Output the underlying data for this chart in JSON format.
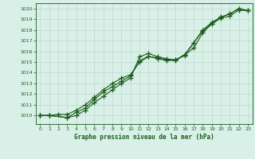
{
  "title": "Graphe pression niveau de la mer (hPa)",
  "bg_color": "#d8f0e8",
  "line_color": "#1a5c1a",
  "grid_color": "#c0d8cc",
  "xlim": [
    -0.5,
    23.5
  ],
  "ylim": [
    1009.2,
    1020.5
  ],
  "yticks": [
    1010,
    1011,
    1012,
    1013,
    1014,
    1015,
    1016,
    1017,
    1018,
    1019,
    1020
  ],
  "xticks": [
    0,
    1,
    2,
    3,
    4,
    5,
    6,
    7,
    8,
    9,
    10,
    11,
    12,
    13,
    14,
    15,
    16,
    17,
    18,
    19,
    20,
    21,
    22,
    23
  ],
  "series1": {
    "x": [
      0,
      1,
      3,
      4,
      5,
      6,
      7,
      8,
      9,
      10,
      11,
      12,
      13,
      14,
      15,
      16,
      17,
      18,
      19,
      20,
      21,
      22,
      23
    ],
    "y": [
      1010.0,
      1010.0,
      1009.8,
      1010.0,
      1010.5,
      1011.2,
      1011.8,
      1012.4,
      1013.0,
      1013.5,
      1015.5,
      1015.8,
      1015.5,
      1015.3,
      1015.2,
      1015.6,
      1016.8,
      1017.9,
      1018.6,
      1019.2,
      1019.5,
      1020.0,
      1019.8
    ]
  },
  "series2": {
    "x": [
      0,
      1,
      3,
      4,
      5,
      6,
      7,
      8,
      9,
      10,
      11,
      12,
      13,
      14,
      15,
      16,
      17,
      18,
      19,
      20,
      21,
      22,
      23
    ],
    "y": [
      1010.0,
      1010.0,
      1009.8,
      1010.3,
      1010.7,
      1011.5,
      1012.2,
      1012.7,
      1013.2,
      1013.7,
      1015.1,
      1015.55,
      1015.3,
      1015.15,
      1015.15,
      1015.65,
      1016.3,
      1017.75,
      1018.55,
      1019.1,
      1019.3,
      1019.85,
      1019.8
    ]
  },
  "series3": {
    "x": [
      0,
      1,
      2,
      3,
      4,
      5,
      6,
      7,
      8,
      9,
      10,
      11,
      12,
      13,
      14,
      15,
      16,
      17,
      18,
      19,
      20,
      21,
      22,
      23
    ],
    "y": [
      1010.0,
      1010.0,
      1010.1,
      1010.1,
      1010.5,
      1011.0,
      1011.7,
      1012.4,
      1013.0,
      1013.5,
      1013.8,
      1015.0,
      1015.5,
      1015.4,
      1015.2,
      1015.2,
      1015.7,
      1016.8,
      1018.0,
      1018.7,
      1019.2,
      1019.5,
      1020.0,
      1019.8
    ]
  }
}
